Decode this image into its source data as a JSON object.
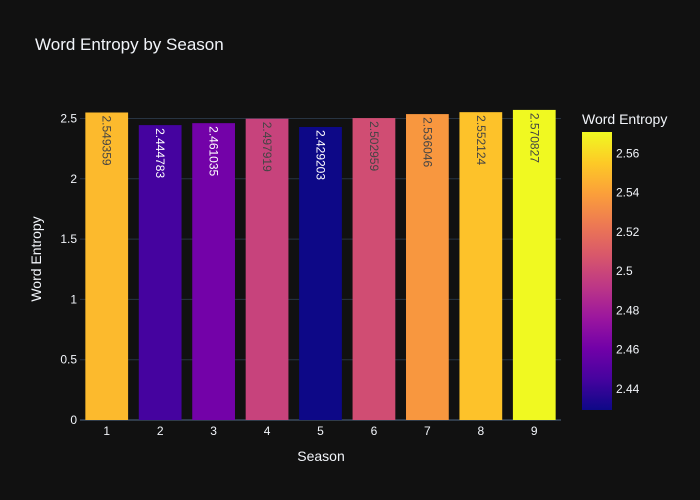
{
  "chart_data": {
    "type": "bar",
    "title": "Word Entropy by Season",
    "xlabel": "Season",
    "ylabel": "Word Entropy",
    "categories": [
      "1",
      "2",
      "3",
      "4",
      "5",
      "6",
      "7",
      "8",
      "9"
    ],
    "values": [
      2.549359,
      2.444783,
      2.461035,
      2.497919,
      2.429203,
      2.502959,
      2.536046,
      2.552124,
      2.570827
    ],
    "data_labels": [
      "2.549359",
      "2.444783",
      "2.461035",
      "2.497919",
      "2.429203",
      "2.502959",
      "2.536046",
      "2.552124",
      "2.570827"
    ],
    "ylim": [
      0,
      2.57
    ],
    "yticks": [
      0,
      0.5,
      1,
      1.5,
      2,
      2.5
    ],
    "ytick_labels": [
      "0",
      "0.5",
      "1",
      "1.5",
      "2",
      "2.5"
    ],
    "grid": true,
    "colorscale": "Plasma",
    "colorbar": {
      "title": "Word Entropy",
      "range": [
        2.429203,
        2.570827
      ],
      "ticks": [
        2.44,
        2.46,
        2.48,
        2.5,
        2.52,
        2.54,
        2.56
      ],
      "tick_labels": [
        "2.44",
        "2.46",
        "2.48",
        "2.5",
        "2.52",
        "2.54",
        "2.56"
      ]
    }
  },
  "colors": {
    "background": "#111111",
    "text": "#f2f5fa",
    "grid": "#283442",
    "plasma": [
      "#0d0887",
      "#46039f",
      "#7201a8",
      "#9c179e",
      "#bd3786",
      "#d8576b",
      "#ed7953",
      "#fb9f3a",
      "#fdca26",
      "#f0f921"
    ]
  }
}
